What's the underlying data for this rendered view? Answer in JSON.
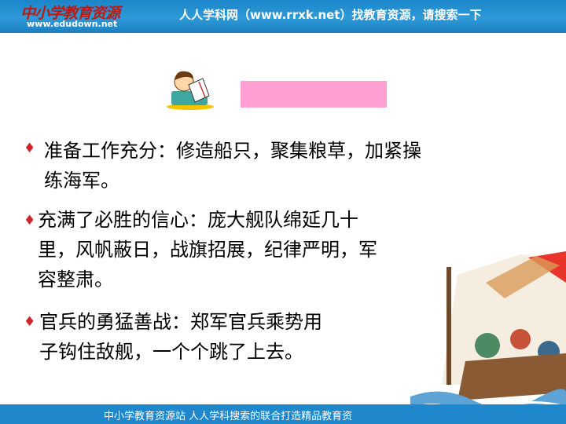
{
  "header": {
    "logo_text": "中小学教育资源",
    "logo_url": "www.edudown.net",
    "slogan": "人人学科网（www.rrxk.net）找教育资源，请搜索一下"
  },
  "footer": {
    "text": "中小学教育资源站  人人学科搜索的联合打造精品教育资"
  },
  "title_box": {
    "color": "#ff9fd2",
    "text": ""
  },
  "bullet_symbol": "♦",
  "points": [
    {
      "lines": [
        "准备工作充分：修造船只，聚集粮草，加紧操",
        "练海军。"
      ]
    },
    {
      "lines": [
        "充满了必胜的信心：庞大舰队绵延几十",
        "里，风帆蔽日，战旗招展，纪律严明，军",
        "容整肃。"
      ]
    },
    {
      "lines": [
        "官兵的勇猛善战：郑军官兵乘势用",
        "子钩住敌舰，一个个跳了上去。"
      ]
    }
  ],
  "icons": {
    "reader": "boy-reading-book-icon",
    "scene": "naval-battle-illustration"
  },
  "colors": {
    "header_blue": "#1f88cc",
    "bullet_red": "#d0232a"
  }
}
